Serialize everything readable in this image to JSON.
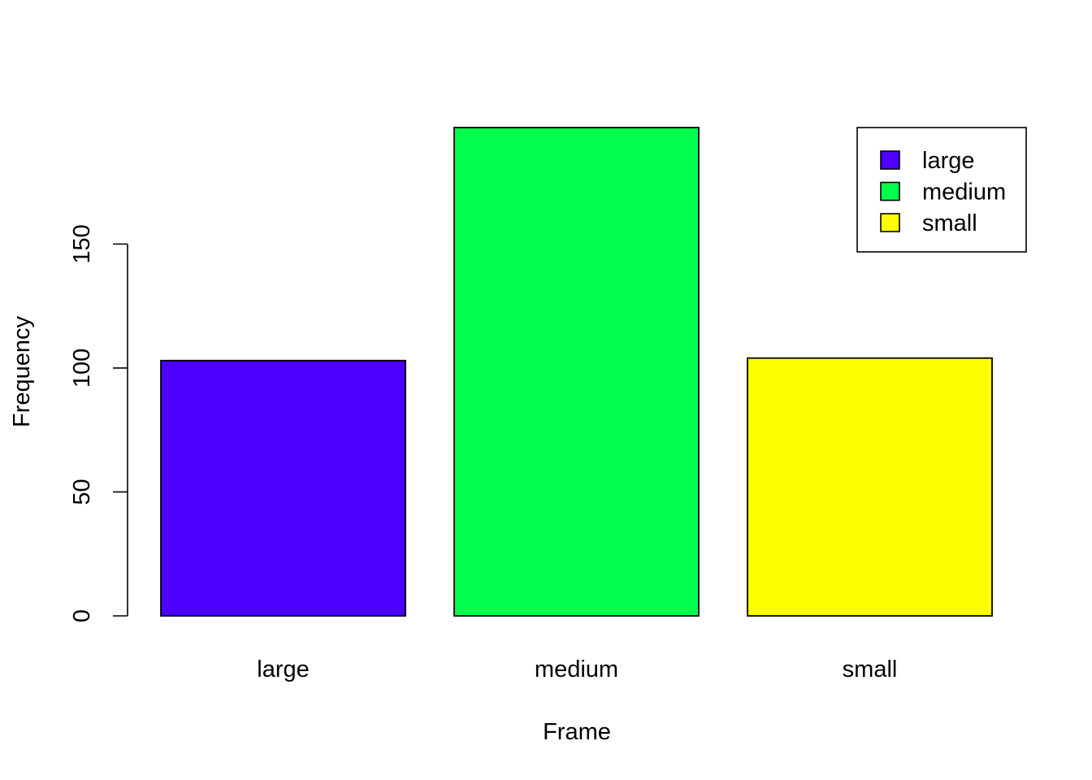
{
  "chart_data": {
    "type": "bar",
    "categories": [
      "large",
      "medium",
      "small"
    ],
    "values": [
      103,
      197,
      104
    ],
    "colors": [
      "#4d00ff",
      "#00ff4d",
      "#ffff00"
    ],
    "xlabel": "Frame",
    "ylabel": "Frequency",
    "ylim": [
      0,
      197
    ],
    "yticks": [
      0,
      50,
      100,
      150
    ],
    "yticklabels": [
      "0",
      "50",
      "100",
      "150"
    ],
    "grid": false,
    "legend": {
      "position": "top-right",
      "entries": [
        "large",
        "medium",
        "small"
      ]
    }
  }
}
